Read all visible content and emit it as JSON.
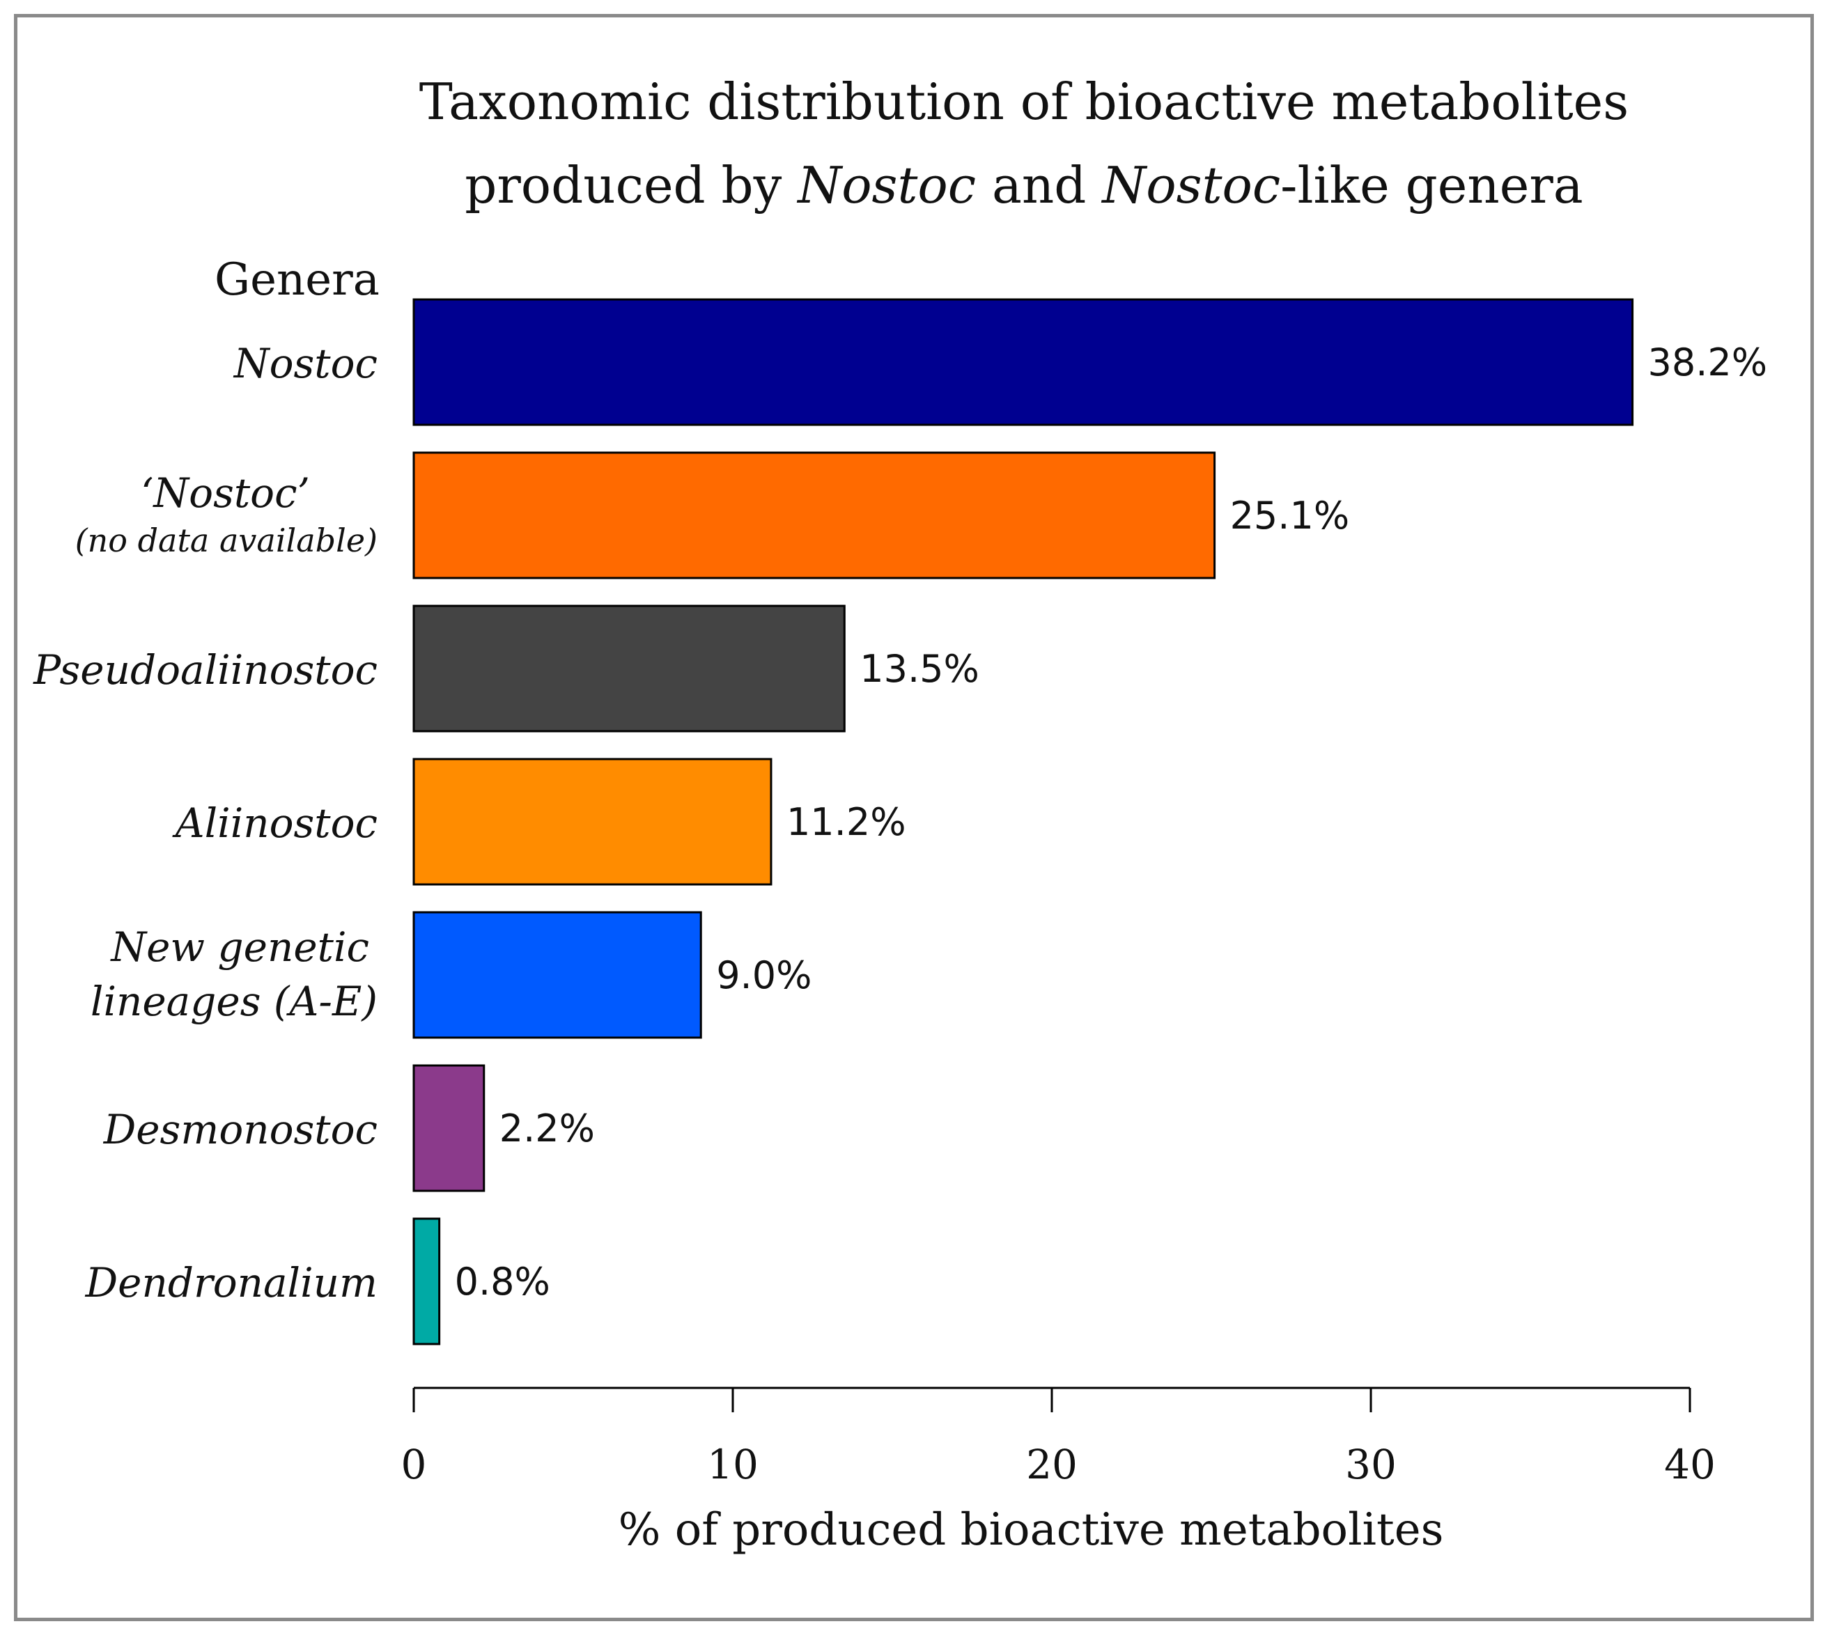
{
  "chart_data": {
    "type": "bar",
    "orientation": "horizontal",
    "title": "Taxonomic distribution of bioactive metabolites produced by Nostoc and Nostoc-like genera",
    "title_lines": [
      [
        {
          "text": "Taxonomic distribution of bioactive metabolites",
          "italic": false
        }
      ],
      [
        {
          "text": "produced by ",
          "italic": false
        },
        {
          "text": "Nostoc",
          "italic": true
        },
        {
          "text": " and ",
          "italic": false
        },
        {
          "text": "Nostoc",
          "italic": true
        },
        {
          "text": "-like genera",
          "italic": false
        }
      ]
    ],
    "ylabel": "Genera",
    "xlabel": "% of produced bioactive metabolites",
    "xlim": [
      0,
      40
    ],
    "xticks": [
      0,
      10,
      20,
      30,
      40
    ],
    "grid": false,
    "categories": [
      "Nostoc",
      "'Nostoc' (no data available)",
      "Pseudoaliinostoc",
      "Aliinostoc",
      "New genetic lineages (A-E)",
      "Desmonostoc",
      "Dendronalium"
    ],
    "category_lines": [
      [
        "Nostoc"
      ],
      [
        "‘Nostoc’",
        "(no data available)"
      ],
      [
        "Pseudoaliinostoc"
      ],
      [
        "Aliinostoc"
      ],
      [
        "New genetic",
        "lineages (A-E)"
      ],
      [
        "Desmonostoc"
      ],
      [
        "Dendronalium"
      ]
    ],
    "values": [
      38.2,
      25.1,
      13.5,
      11.2,
      9.0,
      2.2,
      0.8
    ],
    "value_labels": [
      "38.2%",
      "25.1%",
      "13.5%",
      "11.2%",
      "9.0%",
      "2.2%",
      "0.8%"
    ],
    "colors": [
      "#000090",
      "#ff6a00",
      "#444444",
      "#ff8c00",
      "#005aff",
      "#8b3a8b",
      "#00aaa5"
    ]
  }
}
